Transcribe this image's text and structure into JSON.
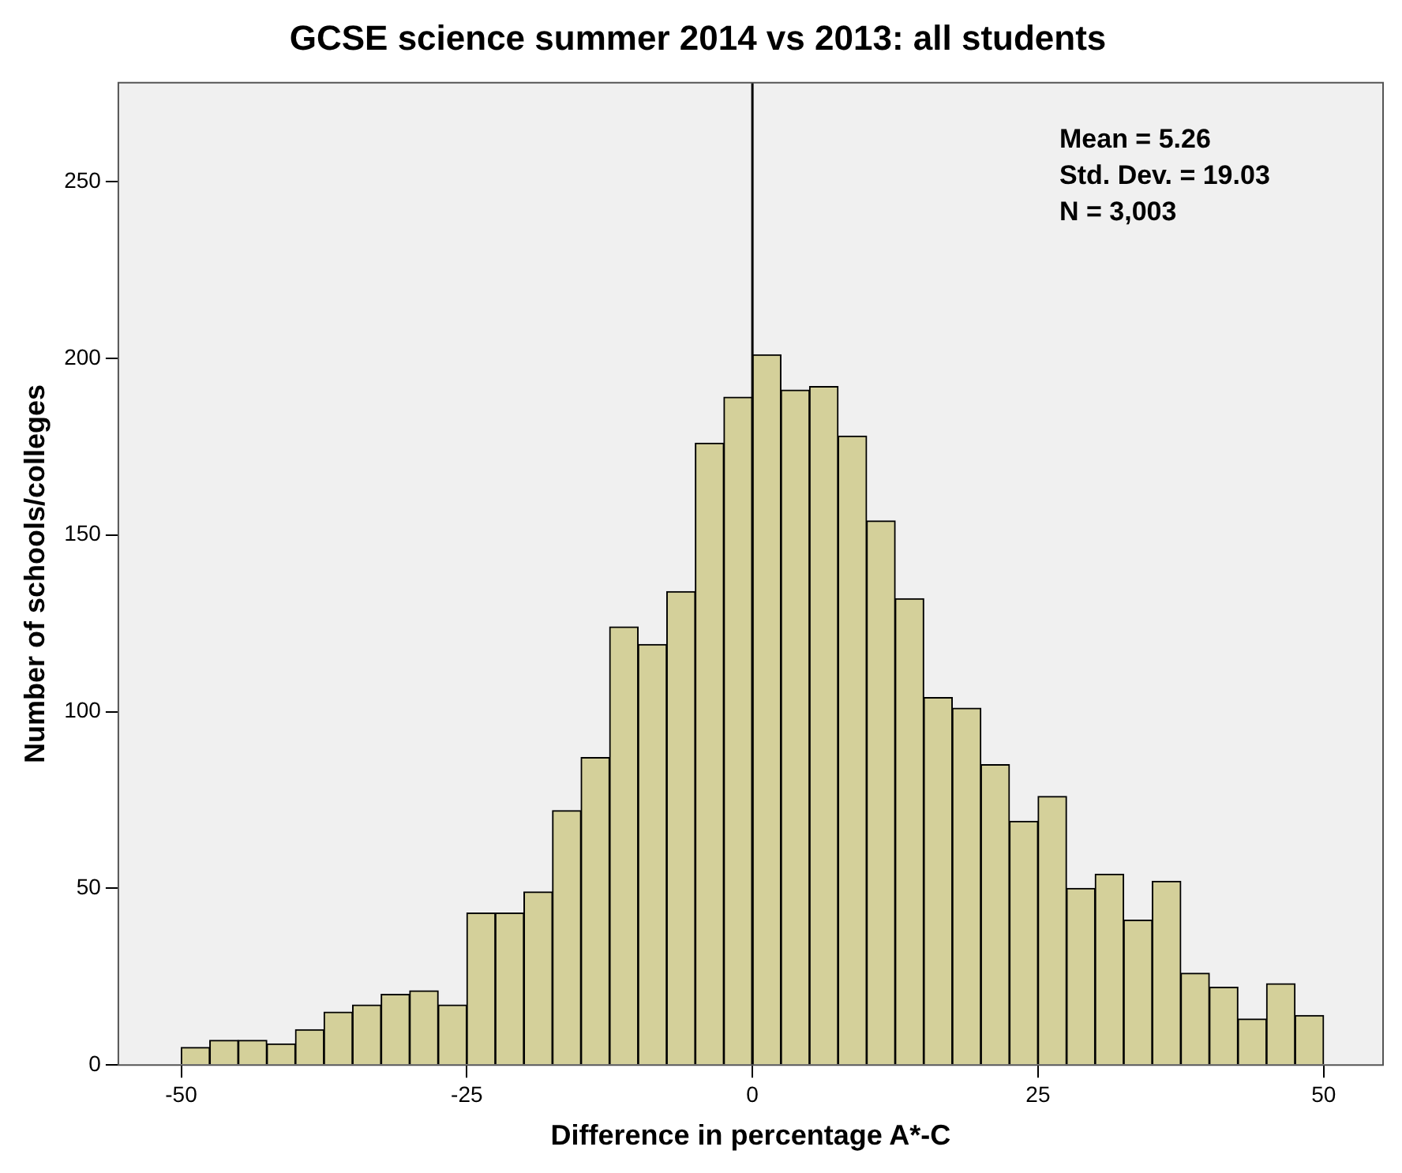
{
  "chart_data": {
    "type": "histogram",
    "title": "GCSE science summer 2014 vs 2013: all students",
    "xlabel": "Difference in percentage A*-C",
    "ylabel": "Number of schools/colleges",
    "bins": [
      -50,
      -47.5,
      -45,
      -42.5,
      -40,
      -37.5,
      -35,
      -32.5,
      -30,
      -27.5,
      -25,
      -22.5,
      -20,
      -17.5,
      -15,
      -12.5,
      -10,
      -7.5,
      -5,
      -2.5,
      0,
      2.5,
      5,
      7.5,
      10,
      12.5,
      15,
      17.5,
      20,
      22.5,
      25,
      27.5,
      30,
      32.5,
      35,
      37.5,
      40,
      42.5,
      45,
      47.5,
      50
    ],
    "values": [
      5,
      7,
      7,
      6,
      10,
      15,
      17,
      20,
      21,
      17,
      43,
      43,
      49,
      72,
      87,
      124,
      119,
      134,
      176,
      189,
      201,
      191,
      192,
      178,
      154,
      132,
      104,
      101,
      85,
      69,
      76,
      50,
      54,
      41,
      52,
      26,
      22,
      13,
      23,
      14
    ],
    "color": "#d4d09a",
    "xlim": [
      -55.5,
      55.2
    ],
    "xticks": [
      -50,
      -25,
      0,
      25,
      50
    ],
    "ylim": [
      0,
      278
    ],
    "yticks": [
      0,
      50,
      100,
      150,
      200,
      250
    ],
    "ref_lines": [
      {
        "axis": "x",
        "value": 0,
        "color": "#000000"
      }
    ],
    "annotations": [
      "Mean = 5.26",
      "Std. Dev. = 19.03",
      "N = 3,003"
    ],
    "legend": false
  }
}
